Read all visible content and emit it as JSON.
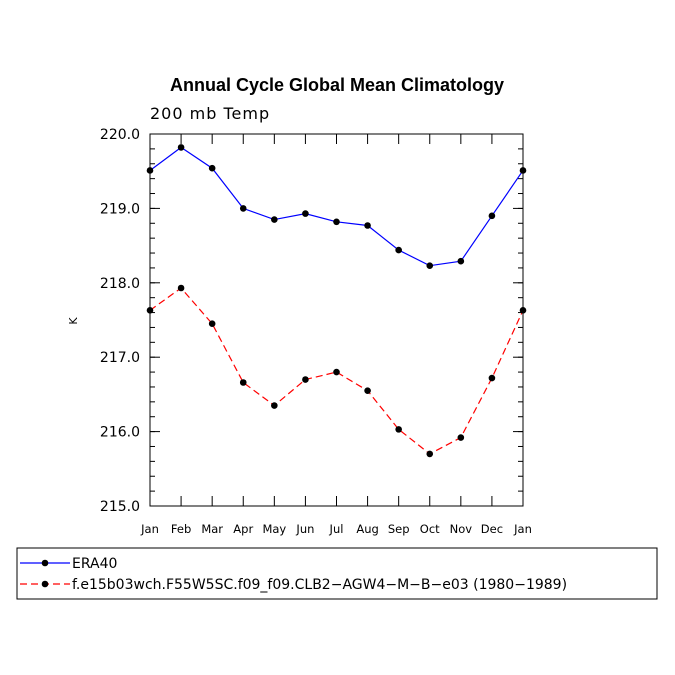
{
  "chart_data": {
    "type": "line",
    "title": "Annual Cycle Global Mean Climatology",
    "subtitle": "200 mb Temp",
    "xlabel": "",
    "ylabel": "K",
    "ylim": [
      215.0,
      220.0
    ],
    "yticks": [
      "215.0",
      "216.0",
      "217.0",
      "218.0",
      "219.0",
      "220.0"
    ],
    "yticks_values": [
      215.0,
      216.0,
      217.0,
      218.0,
      219.0,
      220.0
    ],
    "categories": [
      "Jan",
      "Feb",
      "Mar",
      "Apr",
      "May",
      "Jun",
      "Jul",
      "Aug",
      "Sep",
      "Oct",
      "Nov",
      "Dec",
      "Jan"
    ],
    "series": [
      {
        "name": "ERA40",
        "color": "#0000ff",
        "dash": "solid",
        "values": [
          219.51,
          219.82,
          219.54,
          219.0,
          218.85,
          218.93,
          218.82,
          218.77,
          218.44,
          218.23,
          218.29,
          218.9,
          219.51
        ]
      },
      {
        "name": "f.e15b03wch.F55W5SC.f09_f09.CLB2−AGW4−M−B−e03 (1980−1989)",
        "color": "#ff0000",
        "dash": "dashed",
        "values": [
          217.63,
          217.93,
          217.45,
          216.66,
          216.35,
          216.7,
          216.8,
          216.55,
          216.03,
          215.7,
          215.92,
          216.72,
          217.63
        ]
      }
    ],
    "legend": "bottom-left"
  }
}
